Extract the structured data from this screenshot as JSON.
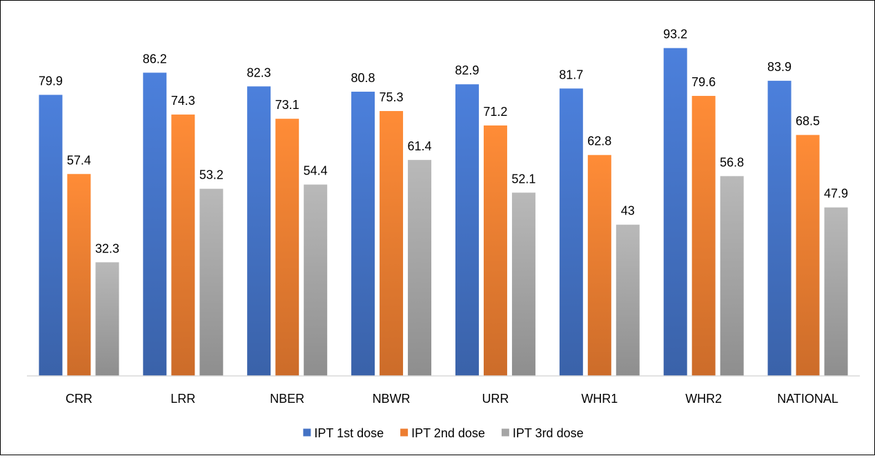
{
  "chart_data": {
    "type": "bar",
    "categories": [
      "CRR",
      "LRR",
      "NBER",
      "NBWR",
      "URR",
      "WHR1",
      "WHR2",
      "NATIONAL"
    ],
    "series": [
      {
        "name": "IPT 1st dose",
        "color": "#4472C4",
        "values": [
          79.9,
          86.2,
          82.3,
          80.8,
          82.9,
          81.7,
          93.2,
          83.9
        ],
        "labels": [
          "79.9",
          "86.2",
          "82.3",
          "80.8",
          "82.9",
          "81.7",
          "93.2",
          "83.9"
        ]
      },
      {
        "name": "IPT 2nd dose",
        "color": "#ED7D31",
        "values": [
          57.4,
          74.3,
          73.1,
          75.3,
          71.2,
          62.8,
          79.6,
          68.5
        ],
        "labels": [
          "57.4",
          "74.3",
          "73.1",
          "75.3",
          "71.2",
          "62.8",
          "79.6",
          "68.5"
        ]
      },
      {
        "name": "IPT 3rd dose",
        "color": "#A5A5A5",
        "values": [
          32.3,
          53.2,
          54.4,
          61.4,
          52.1,
          43,
          56.8,
          47.9
        ],
        "labels": [
          "32.3",
          "53.2",
          "54.4",
          "61.4",
          "52.1",
          "43",
          "56.8",
          "47.9"
        ]
      }
    ],
    "ylim": [
      0,
      100
    ],
    "grid": false,
    "legend_position": "bottom",
    "data_labels": true
  }
}
